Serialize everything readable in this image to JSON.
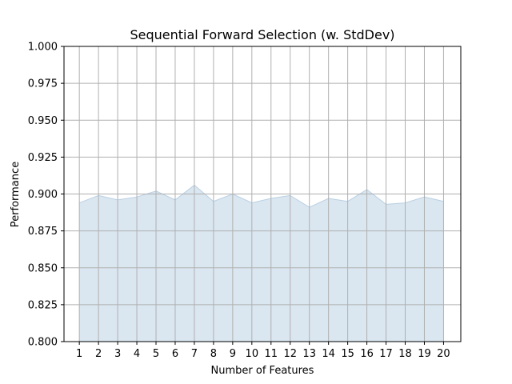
{
  "chart_data": {
    "type": "area",
    "title": "Sequential Forward Selection (w. StdDev)",
    "xlabel": "Number of Features",
    "ylabel": "Performance",
    "x": [
      1,
      2,
      3,
      4,
      5,
      6,
      7,
      8,
      9,
      10,
      11,
      12,
      13,
      14,
      15,
      16,
      17,
      18,
      19,
      20
    ],
    "series": [
      {
        "values": [
          0.894,
          0.899,
          0.896,
          0.898,
          0.902,
          0.896,
          0.906,
          0.895,
          0.9,
          0.894,
          0.897,
          0.899,
          0.891,
          0.897,
          0.895,
          0.903,
          0.893,
          0.894,
          0.898,
          0.895
        ],
        "fill": "#dae6f0",
        "stroke": "#b9cfe2"
      }
    ],
    "xlim": [
      0.2,
      20.9
    ],
    "ylim": [
      0.8,
      1.0
    ],
    "yticks": [
      0.8,
      0.825,
      0.85,
      0.875,
      0.9,
      0.925,
      0.95,
      0.975,
      1.0
    ],
    "xticks": [
      1,
      2,
      3,
      4,
      5,
      6,
      7,
      8,
      9,
      10,
      11,
      12,
      13,
      14,
      15,
      16,
      17,
      18,
      19,
      20
    ],
    "grid": true,
    "grid_color": "#b0b0b0"
  }
}
